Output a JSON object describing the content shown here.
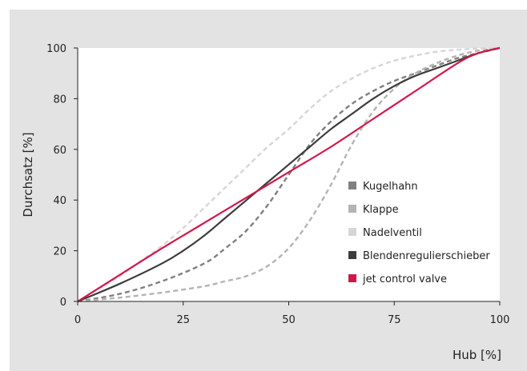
{
  "chart_data": {
    "type": "line",
    "xlabel": "Hub [%]",
    "ylabel": "Durchsatz [%]",
    "xlim": [
      0,
      100
    ],
    "ylim": [
      0,
      100
    ],
    "xticks": [
      0,
      25,
      50,
      75,
      100
    ],
    "yticks": [
      0,
      20,
      40,
      60,
      80,
      100
    ],
    "grid": false,
    "legend_position": "right",
    "series": [
      {
        "name": "Kugelhahn",
        "color": "#808080",
        "dash": true,
        "x": [
          0,
          10,
          20,
          30,
          35,
          40,
          45,
          50,
          55,
          60,
          65,
          70,
          75,
          80,
          85,
          90,
          95,
          100
        ],
        "y": [
          0,
          3,
          8,
          15,
          21,
          28,
          38,
          50,
          62,
          71,
          78,
          83,
          87,
          90,
          93,
          96,
          98,
          100
        ]
      },
      {
        "name": "Klappe",
        "color": "#b4b4b4",
        "dash": true,
        "x": [
          0,
          10,
          20,
          30,
          35,
          40,
          45,
          50,
          55,
          60,
          65,
          70,
          75,
          80,
          85,
          90,
          95,
          100
        ],
        "y": [
          0,
          1.5,
          3.5,
          6,
          8,
          10,
          14,
          21,
          32,
          46,
          62,
          75,
          84,
          90,
          94,
          97,
          99,
          100
        ]
      },
      {
        "name": "Nadelventil",
        "color": "#d6d6d6",
        "dash": true,
        "x": [
          0,
          5,
          10,
          15,
          20,
          25,
          30,
          35,
          40,
          45,
          50,
          55,
          60,
          65,
          70,
          75,
          80,
          85,
          90,
          95,
          100
        ],
        "y": [
          0,
          5,
          10,
          16,
          22,
          29,
          37,
          45,
          53,
          61,
          68,
          76,
          83,
          88,
          92,
          95,
          97,
          98.5,
          99.3,
          99.8,
          100
        ]
      },
      {
        "name": "Blendenregulierschieber",
        "color": "#3c3c3c",
        "dash": false,
        "x": [
          0,
          10,
          20,
          25,
          30,
          35,
          40,
          45,
          50,
          55,
          60,
          65,
          70,
          75,
          80,
          85,
          90,
          95,
          100
        ],
        "y": [
          0,
          7,
          15,
          20,
          26,
          33,
          40,
          47,
          54,
          61,
          68,
          74,
          80,
          85,
          89,
          92,
          95,
          98,
          100
        ]
      },
      {
        "name": "jet control valve",
        "color": "#d3164a",
        "dash": false,
        "x": [
          0,
          10,
          20,
          30,
          40,
          50,
          60,
          70,
          80,
          90,
          95,
          100
        ],
        "y": [
          0,
          10.5,
          21,
          31,
          41,
          51,
          61,
          72,
          83,
          94,
          98,
          100
        ]
      }
    ]
  }
}
